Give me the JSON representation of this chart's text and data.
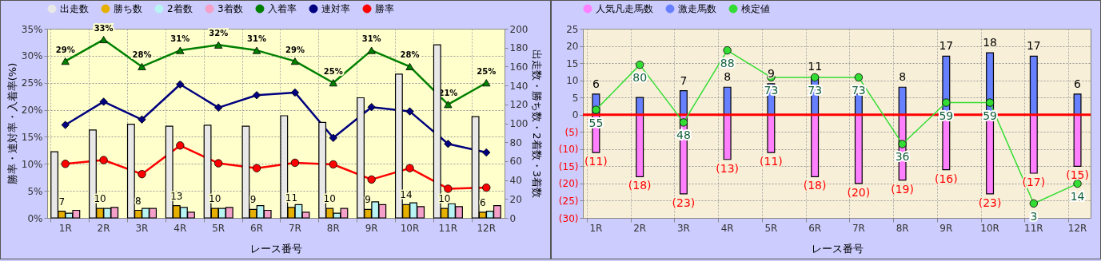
{
  "chart_data": [
    {
      "type": "bar",
      "categories": [
        "1R",
        "2R",
        "3R",
        "4R",
        "5R",
        "6R",
        "7R",
        "8R",
        "9R",
        "10R",
        "11R",
        "12R"
      ],
      "xlabel": "レース番号",
      "ylabel": "勝率・連対率・入着率(%)",
      "y2label": "出走数・勝ち数・2着数・3着数",
      "ylim": [
        0,
        35
      ],
      "yticks": [
        {
          "value": 0,
          "label": "0%"
        },
        {
          "value": 5,
          "label": "5%"
        },
        {
          "value": 10,
          "label": "10%"
        },
        {
          "value": 15,
          "label": "15%"
        },
        {
          "value": 20,
          "label": "20%"
        },
        {
          "value": 25,
          "label": "25%"
        },
        {
          "value": 30,
          "label": "30%"
        },
        {
          "value": 35,
          "label": "35%"
        }
      ],
      "y2lim": [
        0,
        200
      ],
      "y2ticks": [
        0,
        20,
        40,
        60,
        80,
        100,
        120,
        140,
        160,
        180,
        200
      ],
      "grid": true,
      "legend": "top",
      "series": [
        {
          "name": "出走数",
          "color": "#e8e8e8",
          "axis": "y2",
          "values": [
            70,
            93,
            99,
            97,
            98,
            97,
            108,
            101,
            127,
            152,
            183,
            107
          ]
        },
        {
          "name": "勝ち数",
          "color": "#e6b000",
          "axis": "y2",
          "values": [
            7,
            10,
            8,
            13,
            10,
            9,
            11,
            10,
            9,
            14,
            10,
            6
          ],
          "value_labels": [
            "7",
            "10",
            "8",
            "13",
            "10",
            "9",
            "11",
            "10",
            "9",
            "14",
            "10",
            "6"
          ]
        },
        {
          "name": "2着数",
          "color": "#b8f4f4",
          "axis": "y2",
          "values": [
            5,
            10,
            10,
            11,
            10,
            13,
            14,
            5,
            17,
            16,
            15,
            7
          ]
        },
        {
          "name": "3着数",
          "color": "#f4a0c8",
          "axis": "y2",
          "values": [
            8,
            11,
            10,
            6,
            11,
            8,
            6,
            10,
            14,
            12,
            12,
            13
          ]
        },
        {
          "name": "入着率",
          "type": "line",
          "marker": "triangle",
          "color": "#008000",
          "values": [
            29,
            33,
            28,
            31,
            32,
            31,
            29,
            25,
            31,
            28,
            21,
            25
          ],
          "value_labels": [
            "29%",
            "33%",
            "28%",
            "31%",
            "32%",
            "31%",
            "29%",
            "25%",
            "31%",
            "28%",
            "21%",
            "25%"
          ]
        },
        {
          "name": "連対率",
          "type": "line",
          "marker": "diamond",
          "color": "#000080",
          "values": [
            17.2,
            21.5,
            18.2,
            24.7,
            20.4,
            22.7,
            23.2,
            14.8,
            20.5,
            19.7,
            13.7,
            12.1
          ]
        },
        {
          "name": "勝率",
          "type": "line",
          "marker": "circle",
          "color": "#ff0000",
          "values": [
            10.0,
            10.7,
            8.1,
            13.4,
            10.1,
            9.2,
            10.2,
            9.9,
            7.1,
            9.2,
            5.4,
            5.6
          ]
        }
      ]
    },
    {
      "type": "bar",
      "stacked": true,
      "categories": [
        "1R",
        "2R",
        "3R",
        "4R",
        "5R",
        "6R",
        "7R",
        "8R",
        "9R",
        "10R",
        "11R",
        "12R"
      ],
      "xlabel": "レース番号",
      "ylim": [
        -30,
        25
      ],
      "yticks": [
        {
          "value": -30,
          "label": "(30)"
        },
        {
          "value": -25,
          "label": "(25)"
        },
        {
          "value": -20,
          "label": "(20)"
        },
        {
          "value": -15,
          "label": "(15)"
        },
        {
          "value": -10,
          "label": "(10)"
        },
        {
          "value": -5,
          "label": "(5)"
        },
        0,
        5,
        10,
        15,
        20,
        25
      ],
      "y2lim": [
        -5,
        100
      ],
      "grid": true,
      "legend": "top",
      "ref_lines": [
        {
          "axis": "y",
          "value": 0,
          "color": "#ff0000"
        }
      ],
      "series": [
        {
          "name": "人気凡走馬数",
          "color": "#ff80ff",
          "values": [
            -11,
            -18,
            -23,
            -13,
            -11,
            -18,
            -20,
            -19,
            -16,
            -23,
            -17,
            -15
          ],
          "value_labels": [
            "(11)",
            "(18)",
            "(23)",
            "(13)",
            "(11)",
            "(18)",
            "(20)",
            "(19)",
            "(16)",
            "(23)",
            "(17)",
            "(15)"
          ]
        },
        {
          "name": "激走馬数",
          "color": "#6680ff",
          "values": [
            6,
            5,
            7,
            8,
            9,
            11,
            6,
            8,
            17,
            18,
            17,
            6
          ],
          "value_labels": [
            "6",
            null,
            "7",
            "8",
            "9",
            "11",
            null,
            "8",
            "17",
            "18",
            "17",
            "6"
          ]
        },
        {
          "name": "検定値",
          "type": "line",
          "marker": "circle",
          "color": "#33dd33",
          "axis": "y2",
          "values": [
            55,
            80,
            48,
            88,
            73,
            73,
            73,
            36,
            59,
            59,
            3,
            14
          ],
          "value_labels": [
            "55",
            "80",
            "48",
            "88",
            "73",
            "73",
            "73",
            "36",
            "59",
            "59",
            "3",
            "14"
          ]
        }
      ]
    }
  ]
}
